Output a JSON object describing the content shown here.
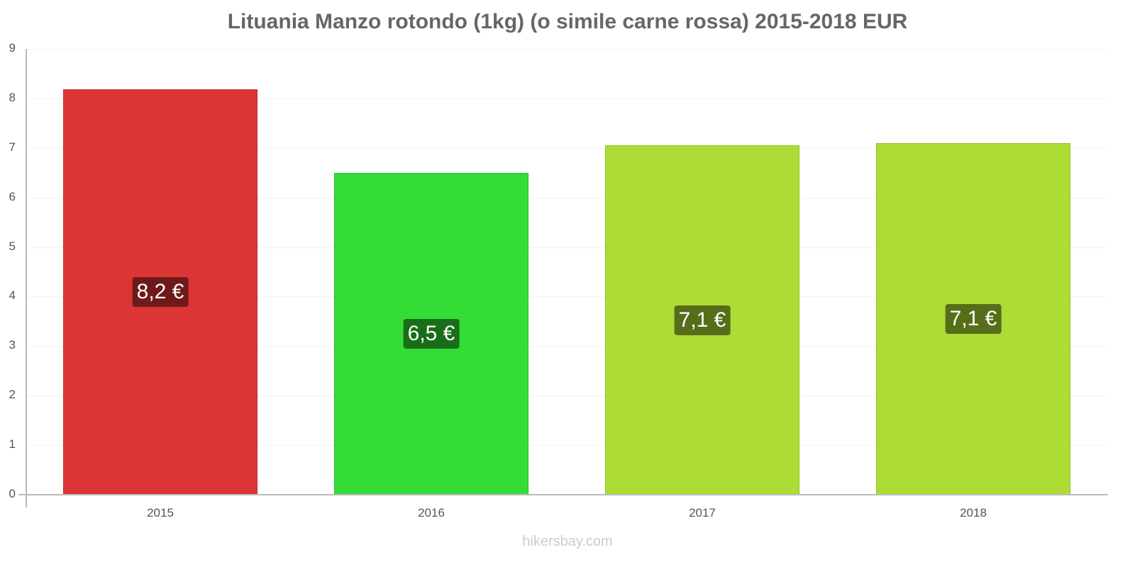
{
  "title": "Lituania Manzo rotondo (1kg) (o simile carne rossa) 2015-2018 EUR",
  "footer": "hikersbay.com",
  "y_ticks": [
    "0",
    "1",
    "2",
    "3",
    "4",
    "5",
    "6",
    "7",
    "8",
    "9"
  ],
  "bars": [
    {
      "year": "2015",
      "value": 8.18,
      "label": "8,2 €",
      "color": "#dc3535",
      "border": "#c42a2a",
      "label_bg": "#6e1a1a"
    },
    {
      "year": "2016",
      "value": 6.5,
      "label": "6,5 €",
      "color": "#35dc35",
      "border": "#2ab82a",
      "label_bg": "#1a6e1a"
    },
    {
      "year": "2017",
      "value": 7.05,
      "label": "7,1 €",
      "color": "#acdc35",
      "border": "#94c02a",
      "label_bg": "#566e1a"
    },
    {
      "year": "2018",
      "value": 7.1,
      "label": "7,1 €",
      "color": "#acdc35",
      "border": "#94c02a",
      "label_bg": "#566e1a"
    }
  ],
  "chart_data": {
    "type": "bar",
    "title": "Lituania Manzo rotondo (1kg) (o simile carne rossa) 2015-2018 EUR",
    "categories": [
      "2015",
      "2016",
      "2017",
      "2018"
    ],
    "values": [
      8.2,
      6.5,
      7.1,
      7.1
    ],
    "data_labels": [
      "8,2 €",
      "6,5 €",
      "7,1 €",
      "7,1 €"
    ],
    "xlabel": "",
    "ylabel": "",
    "ylim": [
      0,
      9
    ],
    "yticks": [
      0,
      1,
      2,
      3,
      4,
      5,
      6,
      7,
      8,
      9
    ],
    "grid": true,
    "legend": "none",
    "colors": [
      "#dc3535",
      "#35dc35",
      "#acdc35",
      "#acdc35"
    ]
  }
}
